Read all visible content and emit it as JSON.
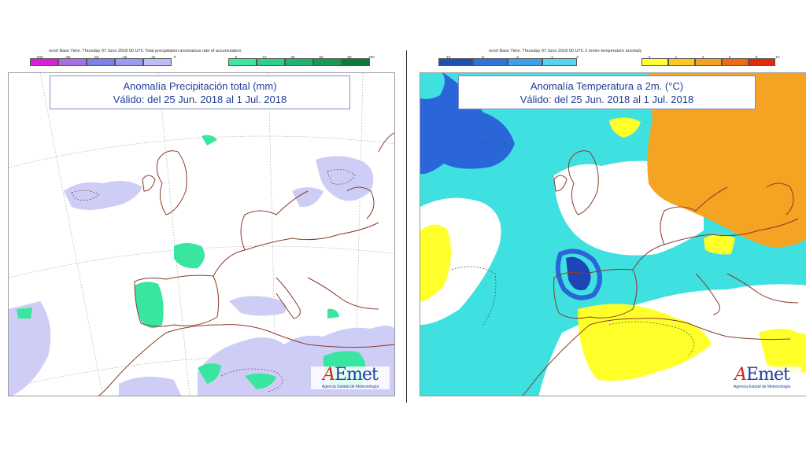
{
  "left": {
    "header_caption": "ecmf  Base Time: Thursday 07 June 2018 00 UTC Total precipitation anomalous rate of accumulation",
    "scale_left": {
      "colors": [
        "#d81ed8",
        "#a86ee8",
        "#8080ea",
        "#9a9af0",
        "#bdbdf6"
      ],
      "ticks": [
        "-200",
        "-80",
        "-40",
        "-30",
        "-10",
        "0"
      ]
    },
    "scale_right": {
      "colors": [
        "#3ee6a0",
        "#2dcf8a",
        "#22b46e",
        "#169a52",
        "#0b7a34"
      ],
      "ticks": [
        "0",
        "10",
        "30",
        "60",
        "80",
        "200"
      ]
    },
    "title_line1": "Anomalía Precipitación total (mm)",
    "title_line2": "Válido: del 25 Jun. 2018 al 1 Jul. 2018",
    "colors": {
      "sea": "#ffffff",
      "dry": "#cdcdf6",
      "wet": "#38e6a0",
      "coast": "#8a3a2a",
      "grid": "#9a9a9a"
    }
  },
  "right": {
    "header_caption": "ecmf  Base Time: Thursday 07 June 2018 00 UTC 2 metre temperature anomaly",
    "scale_left": {
      "colors": [
        "#1c4fb0",
        "#2b74da",
        "#3fa0ea",
        "#55d6ee"
      ],
      "ticks": [
        "-10",
        "-5",
        "-2",
        "-1",
        "-0"
      ]
    },
    "scale_right": {
      "colors": [
        "#ffff33",
        "#ffc61e",
        "#f4a020",
        "#f06a12",
        "#e02a0a"
      ],
      "ticks": [
        "0",
        "1",
        "2",
        "5",
        "8",
        "10"
      ]
    },
    "title_line1": "Anomalía Temperatura a 2m. (°C)",
    "title_line2": "Válido: del 25 Jun. 2018 al 1 Jul. 2018",
    "colors": {
      "cool": "#3ee0e0",
      "cold": "#2b66d8",
      "colder": "#1e45b8",
      "warm": "#ffff2a",
      "hot": "#f4a322",
      "neutral": "#ffffff",
      "coast": "#8a3a2a"
    }
  },
  "logo": {
    "mark_a": "A",
    "mark_rest": "Emet",
    "subtitle": "Agencia Estatal de Meteorología"
  }
}
